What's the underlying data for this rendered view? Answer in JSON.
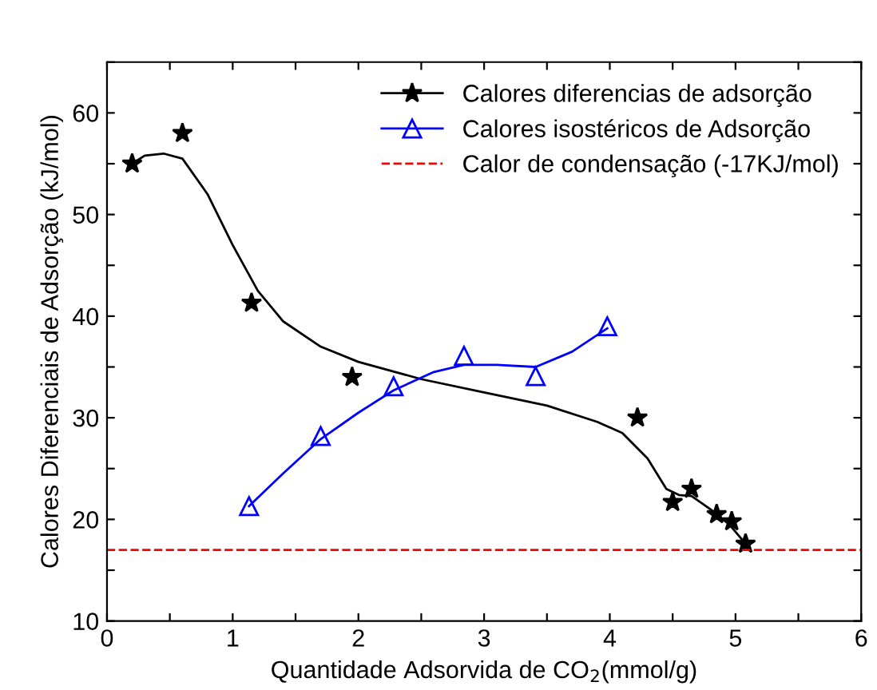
{
  "chart_data": {
    "type": "line",
    "xlabel": "Quantidade Adsorvida de CO$_{2}$(mmol/g)",
    "ylabel": "Calores Diferenciais de Adsorção (kJ/mol)",
    "xlim": [
      0,
      6
    ],
    "ylim": [
      10,
      65
    ],
    "xticks": [
      0,
      {
        "value": 0.5,
        "label": null
      },
      1,
      {
        "value": 1.5,
        "label": null
      },
      2,
      {
        "value": 2.5,
        "label": null
      },
      3,
      {
        "value": 3.5,
        "label": null
      },
      4,
      {
        "value": 4.5,
        "label": null
      },
      5,
      {
        "value": 5.5,
        "label": null
      },
      6
    ],
    "yticks": [
      10,
      {
        "value": 15,
        "label": null
      },
      20,
      {
        "value": 25,
        "label": null
      },
      30,
      {
        "value": 35,
        "label": null
      },
      40,
      {
        "value": 45,
        "label": null
      },
      50,
      {
        "value": 55,
        "label": null
      },
      60,
      {
        "value": 65,
        "label": null
      }
    ],
    "grid": false,
    "legend": "top right",
    "series": [
      {
        "type": "scatter",
        "name": "Calores diferencias de adsorção",
        "color": "#000000",
        "marker": "star",
        "x": [
          0.2,
          0.6,
          1.15,
          1.95,
          4.22,
          4.5,
          4.65,
          4.85,
          4.97,
          5.08
        ],
        "values": [
          55,
          58,
          41.3,
          34,
          30,
          21.7,
          23,
          20.5,
          19.8,
          17.6
        ]
      },
      {
        "color": "#000000",
        "marker": "none",
        "line_style": "solid",
        "x": [
          0.2,
          0.3,
          0.45,
          0.6,
          0.8,
          1.0,
          1.2,
          1.4,
          1.7,
          2.0,
          2.5,
          3.0,
          3.5,
          3.9,
          4.1,
          4.3,
          4.45,
          4.55,
          4.65,
          4.8,
          4.95,
          5.08
        ],
        "values": [
          55,
          55.8,
          56,
          55.5,
          52,
          47,
          42.5,
          39.5,
          37,
          35.5,
          33.8,
          32.5,
          31.2,
          29.6,
          28.5,
          26,
          23,
          22.4,
          22.3,
          21,
          19.5,
          17.6
        ]
      },
      {
        "type": "scatter",
        "name": "Calores isostéricos de Adsorção",
        "color": "#0000ff",
        "marker": "triangle",
        "x": [
          1.13,
          1.7,
          2.28,
          2.84,
          3.41,
          3.98
        ],
        "values": [
          21.3,
          28.2,
          33.1,
          36.1,
          34.1,
          39
        ]
      },
      {
        "color": "#0000ff",
        "marker": "none",
        "line_style": "solid",
        "x": [
          1.13,
          1.4,
          1.7,
          2.0,
          2.28,
          2.6,
          2.84,
          3.1,
          3.41,
          3.7,
          3.98
        ],
        "values": [
          21.3,
          24.5,
          27.9,
          30.5,
          32.7,
          34.5,
          35.2,
          35.2,
          35.0,
          36.5,
          38.8
        ]
      }
    ],
    "ref_lines": [
      {
        "axis": "y",
        "value": 17,
        "label": "Calor de condensação (-17KJ/mol)",
        "color": "#ff0000",
        "line_style": "dashed"
      }
    ]
  }
}
